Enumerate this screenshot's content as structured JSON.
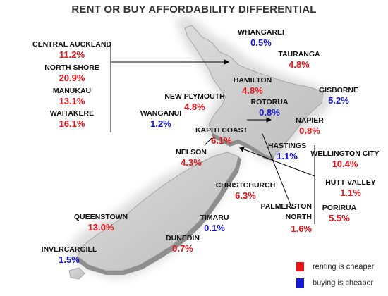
{
  "title": "RENT OR BUY AFFORDABILITY DIFFERENTIAL",
  "colors": {
    "renting_cheaper": "#e8141a",
    "buying_cheaper": "#1616d8",
    "land": "#c9c9c9"
  },
  "legend": {
    "renting": "renting is cheaper",
    "buying": "buying is cheaper"
  },
  "regions": {
    "central_auckland": {
      "name": "CENTRAL AUCKLAND",
      "value": "11.2%",
      "cheaper": "renting"
    },
    "north_shore": {
      "name": "NORTH SHORE",
      "value": "20.9%",
      "cheaper": "renting"
    },
    "manukau": {
      "name": "MANUKAU",
      "value": "13.1%",
      "cheaper": "renting"
    },
    "waitakere": {
      "name": "WAITAKERE",
      "value": "16.1%",
      "cheaper": "renting"
    },
    "whangarei": {
      "name": "WHANGAREI",
      "value": "0.5%",
      "cheaper": "buying"
    },
    "tauranga": {
      "name": "TAURANGA",
      "value": "4.8%",
      "cheaper": "renting"
    },
    "hamilton": {
      "name": "HAMILTON",
      "value": "4.8%",
      "cheaper": "renting"
    },
    "gisborne": {
      "name": "GISBORNE",
      "value": "5.2%",
      "cheaper": "buying"
    },
    "new_plymouth": {
      "name": "NEW PLYMOUTH",
      "value": "4.8%",
      "cheaper": "renting"
    },
    "rotorua": {
      "name": "ROTORUA",
      "value": "0.8%",
      "cheaper": "buying"
    },
    "wanganui": {
      "name": "WANGANUI",
      "value": "1.2%",
      "cheaper": "buying"
    },
    "napier": {
      "name": "NAPIER",
      "value": "0.8%",
      "cheaper": "renting"
    },
    "kapiti_coast": {
      "name": "KAPITI COAST",
      "value": "6.1%",
      "cheaper": "renting"
    },
    "hastings": {
      "name": "HASTINGS",
      "value": "1.1%",
      "cheaper": "buying"
    },
    "nelson": {
      "name": "NELSON",
      "value": "4.3%",
      "cheaper": "renting"
    },
    "wellington_city": {
      "name": "WELLINGTON CITY",
      "value": "10.4%",
      "cheaper": "renting"
    },
    "hutt_valley": {
      "name": "HUTT VALLEY",
      "value": "1.1%",
      "cheaper": "renting"
    },
    "christchurch": {
      "name": "CHRISTCHURCH",
      "value": "6.3%",
      "cheaper": "renting"
    },
    "palmerston_north": {
      "name": "PALMERSTON NORTH",
      "value": "1.6%",
      "cheaper": "renting"
    },
    "porirua": {
      "name": "PORIRUA",
      "value": "5.5%",
      "cheaper": "renting"
    },
    "queenstown": {
      "name": "QUEENSTOWN",
      "value": "13.0%",
      "cheaper": "renting"
    },
    "timaru": {
      "name": "TIMARU",
      "value": "0.1%",
      "cheaper": "buying"
    },
    "dunedin": {
      "name": "DUNEDIN",
      "value": "0.7%",
      "cheaper": "renting"
    },
    "invercargill": {
      "name": "INVERCARGILL",
      "value": "1.5%",
      "cheaper": "buying"
    }
  }
}
